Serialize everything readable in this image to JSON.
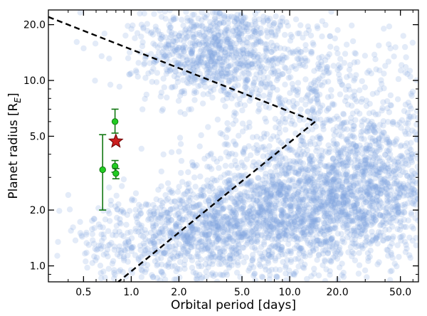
{
  "chart_data": {
    "type": "scatter",
    "title": "",
    "xlabel": "Orbital period [days]",
    "ylabel_main": "Planet radius [R",
    "ylabel_sub": "E",
    "ylabel_end": "]",
    "xscale": "log",
    "yscale": "log",
    "xlim": [
      0.3,
      65
    ],
    "ylim": [
      0.82,
      24
    ],
    "x_ticks": [
      0.5,
      1.0,
      2.0,
      5.0,
      10.0,
      20.0,
      50.0
    ],
    "x_tick_labels": [
      "0.5",
      "1.0",
      "2.0",
      "5.0",
      "10.0",
      "20.0",
      "50.0"
    ],
    "y_ticks": [
      1.0,
      2.0,
      5.0,
      10.0,
      20.0
    ],
    "y_tick_labels": [
      "1.0",
      "2.0",
      "5.0",
      "10.0",
      "20.0"
    ],
    "grid": false,
    "legend": "none",
    "background_population": {
      "name": "",
      "color": "#7ea6e0",
      "opacity": 0.22,
      "clusters": [
        {
          "x_center": 3.5,
          "y_center": 14.0,
          "x_spread": 0.22,
          "y_spread": 0.13,
          "count": 650
        },
        {
          "x_center": 2.5,
          "y_center": 17.0,
          "x_spread": 0.3,
          "y_spread": 0.12,
          "count": 150
        },
        {
          "x_center": 9.0,
          "y_center": 12.0,
          "x_spread": 0.35,
          "y_spread": 0.16,
          "count": 260
        },
        {
          "x_center": 12.0,
          "y_center": 2.2,
          "x_spread": 0.38,
          "y_spread": 0.17,
          "count": 1500
        },
        {
          "x_center": 35.0,
          "y_center": 2.6,
          "x_spread": 0.25,
          "y_spread": 0.17,
          "count": 650
        },
        {
          "x_center": 4.0,
          "y_center": 1.5,
          "x_spread": 0.32,
          "y_spread": 0.13,
          "count": 700
        },
        {
          "x_center": 1.3,
          "y_center": 1.3,
          "x_spread": 0.28,
          "y_spread": 0.13,
          "count": 320
        },
        {
          "x_center": 20.0,
          "y_center": 6.0,
          "x_spread": 0.42,
          "y_spread": 0.2,
          "count": 420
        }
      ]
    },
    "boundary": {
      "name": "",
      "style": "dashed",
      "color": "#000000",
      "points": [
        [
          0.3,
          22.0
        ],
        [
          14.5,
          6.0
        ],
        [
          0.8,
          0.8
        ]
      ]
    },
    "highlighted_planets": {
      "name": "",
      "color": "#22cc22",
      "edge_color": "#117711",
      "points": [
        {
          "x": 0.66,
          "y": 3.3,
          "y_low": 2.0,
          "y_high": 5.1
        },
        {
          "x": 0.79,
          "y": 6.0,
          "y_low": 5.2,
          "y_high": 7.0
        },
        {
          "x": 0.79,
          "y": 3.45,
          "y_low": 3.2,
          "y_high": 3.7
        },
        {
          "x": 0.8,
          "y": 3.15,
          "y_low": 2.95,
          "y_high": 3.35
        }
      ]
    },
    "target": {
      "name": "",
      "x": 0.8,
      "y": 4.7,
      "marker": "star",
      "color": "#cc1f1f",
      "edge_color": "#6a0000"
    }
  }
}
